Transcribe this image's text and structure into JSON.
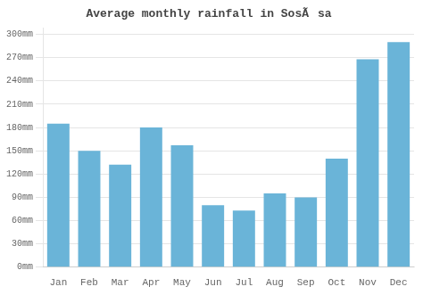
{
  "chart_data": {
    "type": "bar",
    "title": "Average monthly rainfall in SosÃsa",
    "categories": [
      "Jan",
      "Feb",
      "Mar",
      "Apr",
      "May",
      "Jun",
      "Jul",
      "Aug",
      "Sep",
      "Oct",
      "Nov",
      "Dec"
    ],
    "values": [
      185,
      150,
      132,
      180,
      157,
      80,
      73,
      95,
      90,
      140,
      268,
      290
    ],
    "color": "#6ab4d8",
    "ylim": [
      0,
      308
    ],
    "yticks": [
      {
        "value": 0,
        "label": "0mm"
      },
      {
        "value": 30,
        "label": "30mm"
      },
      {
        "value": 60,
        "label": "60mm"
      },
      {
        "value": 90,
        "label": "90mm"
      },
      {
        "value": 120,
        "label": "120mm"
      },
      {
        "value": 150,
        "label": "150mm"
      },
      {
        "value": 180,
        "label": "180mm"
      },
      {
        "value": 210,
        "label": "210mm"
      },
      {
        "value": 240,
        "label": "240mm"
      },
      {
        "value": 270,
        "label": "270mm"
      },
      {
        "value": 300,
        "label": "300mm"
      }
    ],
    "grid": true
  }
}
